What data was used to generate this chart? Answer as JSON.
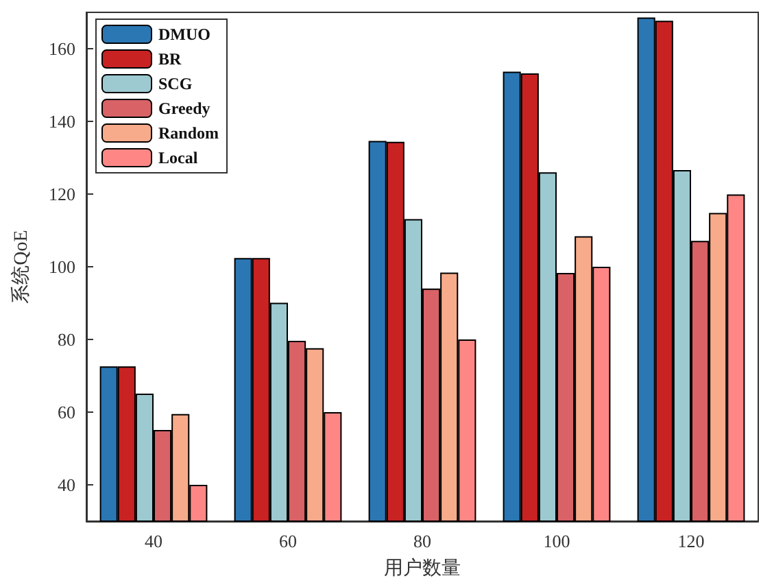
{
  "chart_data": {
    "type": "bar",
    "xlabel": "用户数量",
    "ylabel": "系统QoE",
    "categories": [
      "40",
      "60",
      "80",
      "100",
      "120"
    ],
    "series": [
      {
        "name": "DMUO",
        "color": "#2b77b4",
        "values": [
          72.6,
          102.4,
          134.6,
          153.7,
          168.6
        ]
      },
      {
        "name": "BR",
        "color": "#c92223",
        "values": [
          72.6,
          102.4,
          134.4,
          153.2,
          167.7
        ]
      },
      {
        "name": "SCG",
        "color": "#9dc9d1",
        "values": [
          65.1,
          90.1,
          113.1,
          126.0,
          126.6
        ]
      },
      {
        "name": "Greedy",
        "color": "#d86266",
        "values": [
          55.1,
          79.6,
          94.0,
          98.3,
          107.1
        ]
      },
      {
        "name": "Random",
        "color": "#f7ab8a",
        "values": [
          59.5,
          77.6,
          98.4,
          108.4,
          114.8
        ]
      },
      {
        "name": "Local",
        "color": "#fe8785",
        "values": [
          40,
          60,
          80,
          100,
          119.9
        ]
      }
    ],
    "ylim": [
      30,
      170
    ],
    "yticks": [
      40,
      60,
      80,
      100,
      120,
      140,
      160
    ],
    "grid": false,
    "legend": "top left"
  }
}
